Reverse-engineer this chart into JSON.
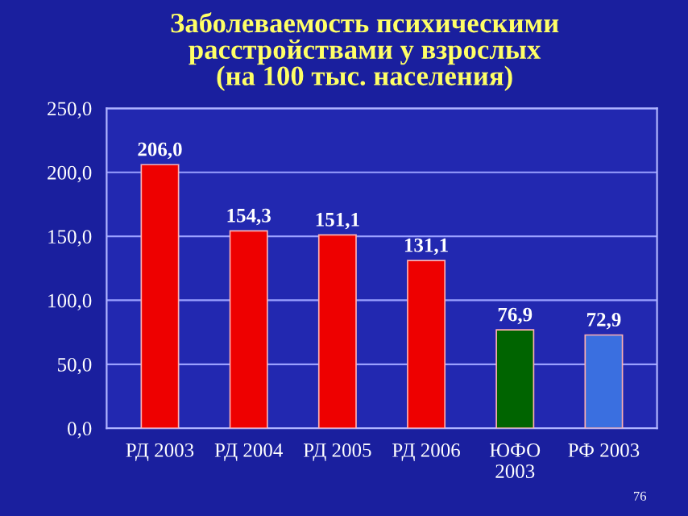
{
  "chart_data": {
    "type": "bar",
    "title": "Заболеваемость психическими\nрасстройствами у взрослых\n(на 100 тыс. населения)",
    "categories": [
      "РД 2003",
      "РД 2004",
      "РД 2005",
      "РД 2006",
      "ЮФО\n2003",
      "РФ 2003"
    ],
    "values": [
      206.0,
      154.3,
      151.1,
      131.1,
      76.9,
      72.9
    ],
    "colors": [
      "#ee0000",
      "#ee0000",
      "#ee0000",
      "#ee0000",
      "#006400",
      "#3a6fe0"
    ],
    "value_labels": [
      "206,0",
      "154,3",
      "151,1",
      "131,1",
      "76,9",
      "72,9"
    ],
    "ylim": [
      0,
      250
    ],
    "yticks": [
      {
        "value": 0,
        "label": "0,0"
      },
      {
        "value": 50,
        "label": "50,0"
      },
      {
        "value": 100,
        "label": "100,0"
      },
      {
        "value": 150,
        "label": "150,0"
      },
      {
        "value": 200,
        "label": "200,0"
      },
      {
        "value": 250,
        "label": "250,0"
      }
    ],
    "grid": "y",
    "annotations": [
      "76"
    ]
  }
}
